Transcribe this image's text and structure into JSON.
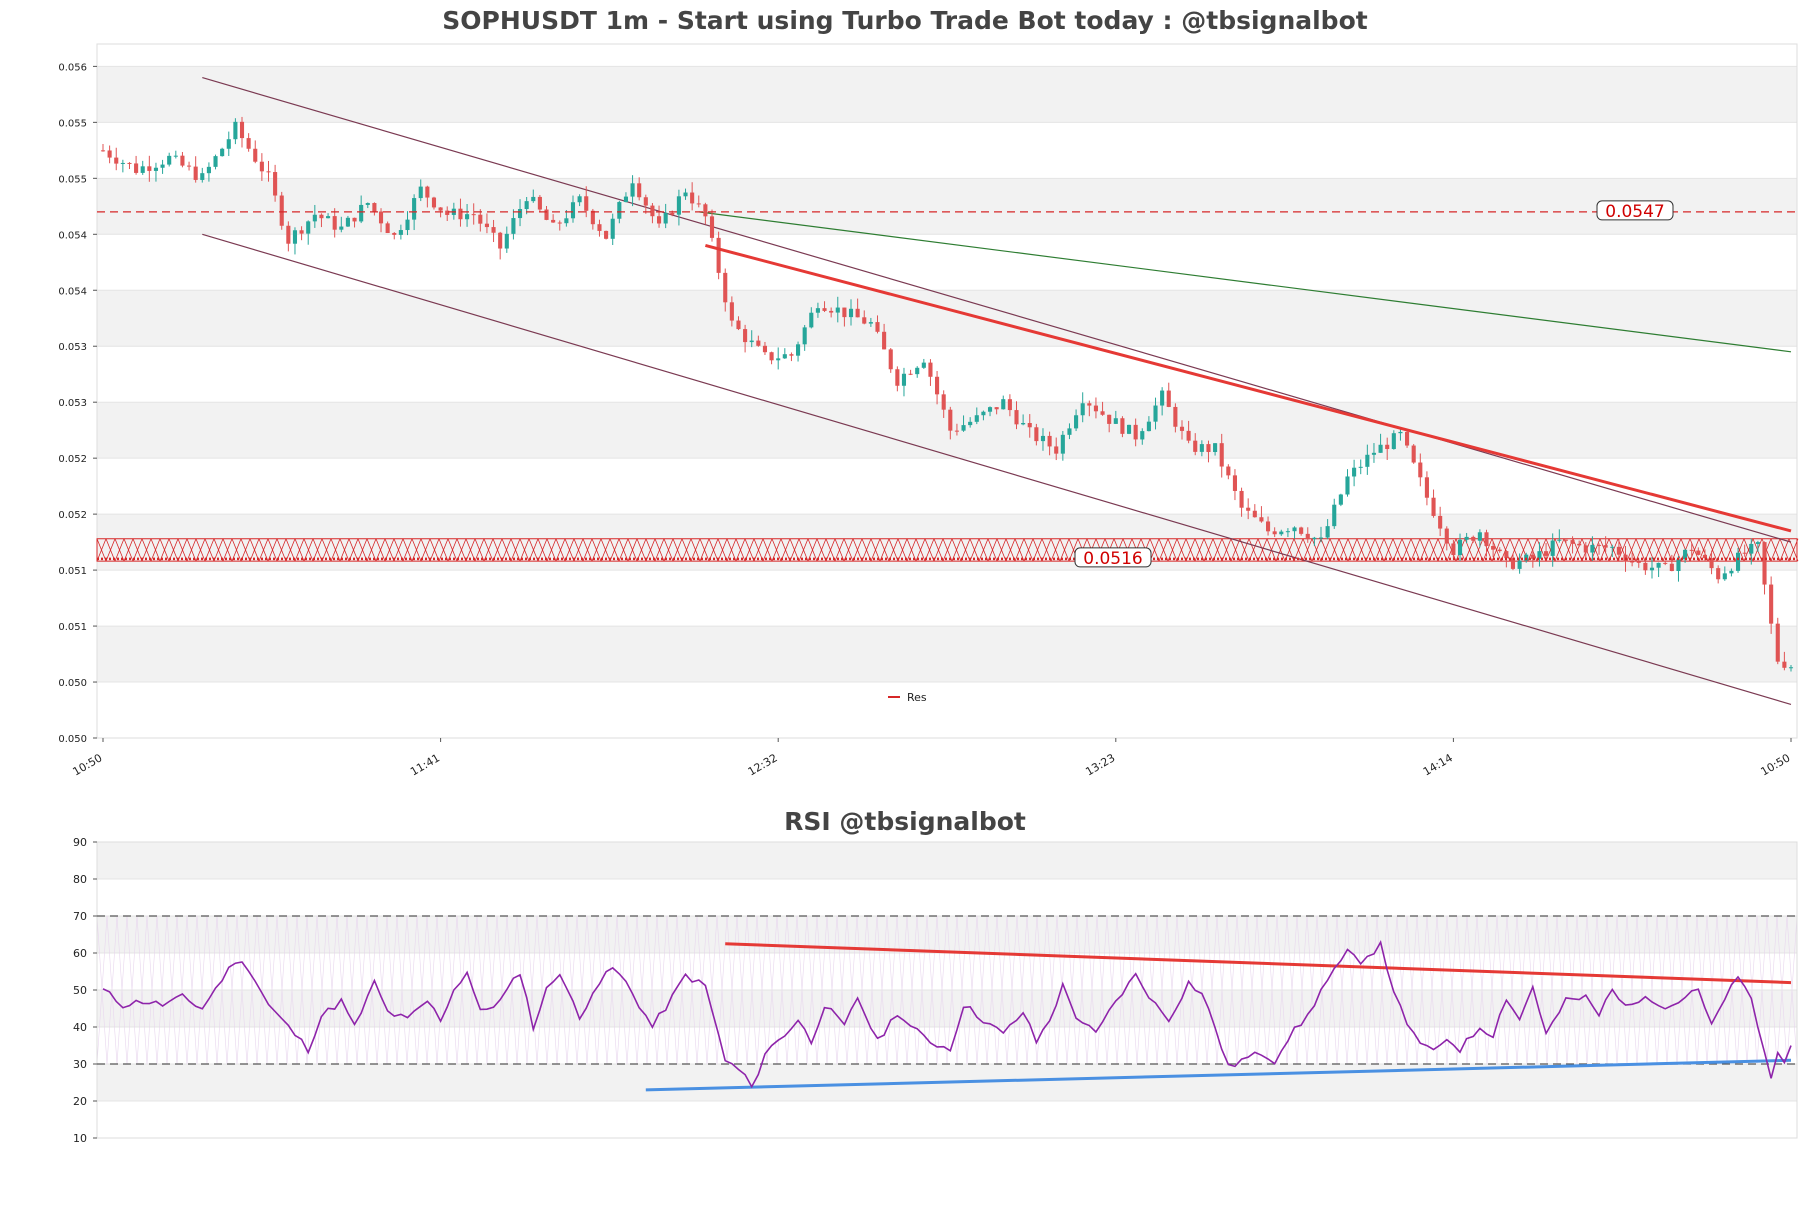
{
  "chart_data": [
    {
      "type": "candlestick",
      "title": "SOPHUSDT 1m - Start using Turbo Trade Bot today : @tbsignalbot",
      "ylim": [
        0.05,
        0.0562
      ],
      "y_ticks": [
        {
          "v": 0.056,
          "label": "0.056"
        },
        {
          "v": 0.0555,
          "label": "0.055"
        },
        {
          "v": 0.055,
          "label": "0.055"
        },
        {
          "v": 0.0545,
          "label": "0.054"
        },
        {
          "v": 0.054,
          "label": "0.054"
        },
        {
          "v": 0.0535,
          "label": "0.053"
        },
        {
          "v": 0.053,
          "label": "0.053"
        },
        {
          "v": 0.0525,
          "label": "0.052"
        },
        {
          "v": 0.052,
          "label": "0.052"
        },
        {
          "v": 0.0515,
          "label": "0.051"
        },
        {
          "v": 0.051,
          "label": "0.051"
        },
        {
          "v": 0.0505,
          "label": "0.050"
        },
        {
          "v": 0.05,
          "label": "0.050"
        }
      ],
      "x_ticks": [
        {
          "i": 0,
          "label": "10:50"
        },
        {
          "i": 51,
          "label": "11:41"
        },
        {
          "i": 102,
          "label": "12:32"
        },
        {
          "i": 153,
          "label": "13:23"
        },
        {
          "i": 204,
          "label": "14:14"
        },
        {
          "i": 255,
          "label": "10:50"
        }
      ],
      "n_slots": 255,
      "anchors": [
        [
          0,
          0.05525
        ],
        [
          5,
          0.05508
        ],
        [
          10,
          0.05518
        ],
        [
          15,
          0.055
        ],
        [
          20,
          0.05545
        ],
        [
          25,
          0.055
        ],
        [
          28,
          0.05445
        ],
        [
          32,
          0.05468
        ],
        [
          36,
          0.05455
        ],
        [
          40,
          0.05478
        ],
        [
          44,
          0.05448
        ],
        [
          48,
          0.0549
        ],
        [
          52,
          0.05468
        ],
        [
          56,
          0.05468
        ],
        [
          60,
          0.05438
        ],
        [
          64,
          0.05485
        ],
        [
          68,
          0.05455
        ],
        [
          72,
          0.0548
        ],
        [
          76,
          0.05448
        ],
        [
          80,
          0.055
        ],
        [
          84,
          0.05455
        ],
        [
          88,
          0.0549
        ],
        [
          91,
          0.05465
        ],
        [
          95,
          0.0537
        ],
        [
          100,
          0.0534
        ],
        [
          104,
          0.05342
        ],
        [
          108,
          0.0539
        ],
        [
          112,
          0.0538
        ],
        [
          116,
          0.0537
        ],
        [
          120,
          0.0532
        ],
        [
          124,
          0.0534
        ],
        [
          128,
          0.05275
        ],
        [
          132,
          0.05285
        ],
        [
          136,
          0.053
        ],
        [
          140,
          0.05272
        ],
        [
          144,
          0.05258
        ],
        [
          148,
          0.05305
        ],
        [
          152,
          0.05285
        ],
        [
          156,
          0.0527
        ],
        [
          160,
          0.05305
        ],
        [
          164,
          0.0526
        ],
        [
          168,
          0.05258
        ],
        [
          172,
          0.05205
        ],
        [
          176,
          0.05185
        ],
        [
          180,
          0.0519
        ],
        [
          184,
          0.05175
        ],
        [
          188,
          0.05232
        ],
        [
          192,
          0.05256
        ],
        [
          196,
          0.0527
        ],
        [
          200,
          0.05215
        ],
        [
          204,
          0.05168
        ],
        [
          208,
          0.05185
        ],
        [
          212,
          0.05155
        ],
        [
          216,
          0.0516
        ],
        [
          220,
          0.05175
        ],
        [
          224,
          0.0517
        ],
        [
          228,
          0.0517
        ],
        [
          232,
          0.05155
        ],
        [
          236,
          0.0515
        ],
        [
          240,
          0.0517
        ],
        [
          244,
          0.05145
        ],
        [
          248,
          0.05165
        ],
        [
          250,
          0.0517
        ],
        [
          252,
          0.051
        ],
        [
          253,
          0.0507
        ],
        [
          255,
          0.05065
        ]
      ],
      "levels": [
        {
          "name": "Res",
          "value": 0.0547,
          "label": "0.0547",
          "color": "#d62728",
          "style": "dashed"
        },
        {
          "name": "Res",
          "value": 0.0516,
          "label": "0.0516",
          "color": "#d62728",
          "style": "dotted"
        }
      ],
      "resistance_zone": [
        0.05158,
        0.05178
      ],
      "trend_line": {
        "from": [
          90,
          0.0547
        ],
        "to": [
          255,
          0.05345
        ],
        "color": "#2e7d32"
      },
      "channel_upper": {
        "from": [
          15,
          0.0559
        ],
        "to": [
          255,
          0.05175
        ],
        "color": "#7b3a52"
      },
      "channel_lower": {
        "from": [
          15,
          0.0545
        ],
        "to": [
          255,
          0.0503
        ],
        "color": "#7b3a52"
      },
      "resistance_trendline": {
        "from": [
          91,
          0.0544
        ],
        "to": [
          255,
          0.05185
        ],
        "color": "#e53935"
      },
      "legend": [
        {
          "label": "Res",
          "color": "#d62728"
        }
      ],
      "legend_position": "bottom-center",
      "colors": {
        "up": "#26a69a",
        "down": "#e05454"
      }
    },
    {
      "type": "line",
      "title": "RSI @tbsignalbot",
      "ylim": [
        10,
        90
      ],
      "y_ticks": [
        90,
        80,
        70,
        60,
        50,
        40,
        30,
        20,
        10
      ],
      "guides": [
        70,
        30
      ],
      "n_slots": 255,
      "anchors": [
        [
          0,
          50
        ],
        [
          3,
          46
        ],
        [
          6,
          47
        ],
        [
          9,
          46
        ],
        [
          12,
          48
        ],
        [
          15,
          45
        ],
        [
          18,
          53
        ],
        [
          20,
          58
        ],
        [
          22,
          56
        ],
        [
          25,
          46
        ],
        [
          28,
          40
        ],
        [
          31,
          34
        ],
        [
          33,
          43
        ],
        [
          36,
          47
        ],
        [
          38,
          40
        ],
        [
          41,
          52
        ],
        [
          43,
          44
        ],
        [
          46,
          42
        ],
        [
          49,
          47
        ],
        [
          51,
          42
        ],
        [
          53,
          50
        ],
        [
          55,
          55
        ],
        [
          57,
          44
        ],
        [
          60,
          47
        ],
        [
          63,
          55
        ],
        [
          65,
          40
        ],
        [
          67,
          50
        ],
        [
          69,
          55
        ],
        [
          72,
          42
        ],
        [
          74,
          50
        ],
        [
          77,
          56
        ],
        [
          79,
          52
        ],
        [
          81,
          46
        ],
        [
          83,
          40
        ],
        [
          86,
          48
        ],
        [
          88,
          54
        ],
        [
          91,
          51
        ],
        [
          94,
          31
        ],
        [
          97,
          27
        ],
        [
          98,
          23
        ],
        [
          100,
          33
        ],
        [
          103,
          38
        ],
        [
          105,
          42
        ],
        [
          107,
          36
        ],
        [
          109,
          46
        ],
        [
          112,
          40
        ],
        [
          114,
          48
        ],
        [
          117,
          36
        ],
        [
          120,
          44
        ],
        [
          122,
          40
        ],
        [
          125,
          36
        ],
        [
          128,
          34
        ],
        [
          130,
          46
        ],
        [
          133,
          42
        ],
        [
          136,
          38
        ],
        [
          139,
          44
        ],
        [
          141,
          36
        ],
        [
          143,
          42
        ],
        [
          145,
          51
        ],
        [
          147,
          43
        ],
        [
          150,
          38
        ],
        [
          153,
          47
        ],
        [
          156,
          54
        ],
        [
          159,
          46
        ],
        [
          161,
          42
        ],
        [
          164,
          52
        ],
        [
          166,
          49
        ],
        [
          168,
          40
        ],
        [
          170,
          29
        ],
        [
          172,
          31
        ],
        [
          175,
          33
        ],
        [
          177,
          31
        ],
        [
          179,
          37
        ],
        [
          182,
          43
        ],
        [
          184,
          50
        ],
        [
          186,
          55
        ],
        [
          188,
          60
        ],
        [
          190,
          58
        ],
        [
          193,
          62
        ],
        [
          195,
          50
        ],
        [
          197,
          40
        ],
        [
          199,
          36
        ],
        [
          201,
          33
        ],
        [
          203,
          37
        ],
        [
          205,
          34
        ],
        [
          208,
          40
        ],
        [
          210,
          38
        ],
        [
          212,
          48
        ],
        [
          214,
          42
        ],
        [
          216,
          51
        ],
        [
          218,
          38
        ],
        [
          221,
          47
        ],
        [
          224,
          48
        ],
        [
          226,
          43
        ],
        [
          228,
          51
        ],
        [
          230,
          45
        ],
        [
          233,
          49
        ],
        [
          236,
          45
        ],
        [
          239,
          48
        ],
        [
          241,
          50
        ],
        [
          243,
          40
        ],
        [
          245,
          48
        ],
        [
          247,
          53
        ],
        [
          249,
          48
        ],
        [
          250,
          40
        ],
        [
          252,
          26
        ],
        [
          253,
          34
        ],
        [
          254,
          31
        ],
        [
          255,
          34
        ]
      ],
      "resistance_line": {
        "from": [
          94,
          62.5
        ],
        "to": [
          255,
          52
        ],
        "color": "#e53935"
      },
      "support_line": {
        "from": [
          82,
          23
        ],
        "to": [
          255,
          31
        ],
        "color": "#4a90e2"
      },
      "color": "#8e24aa"
    }
  ]
}
